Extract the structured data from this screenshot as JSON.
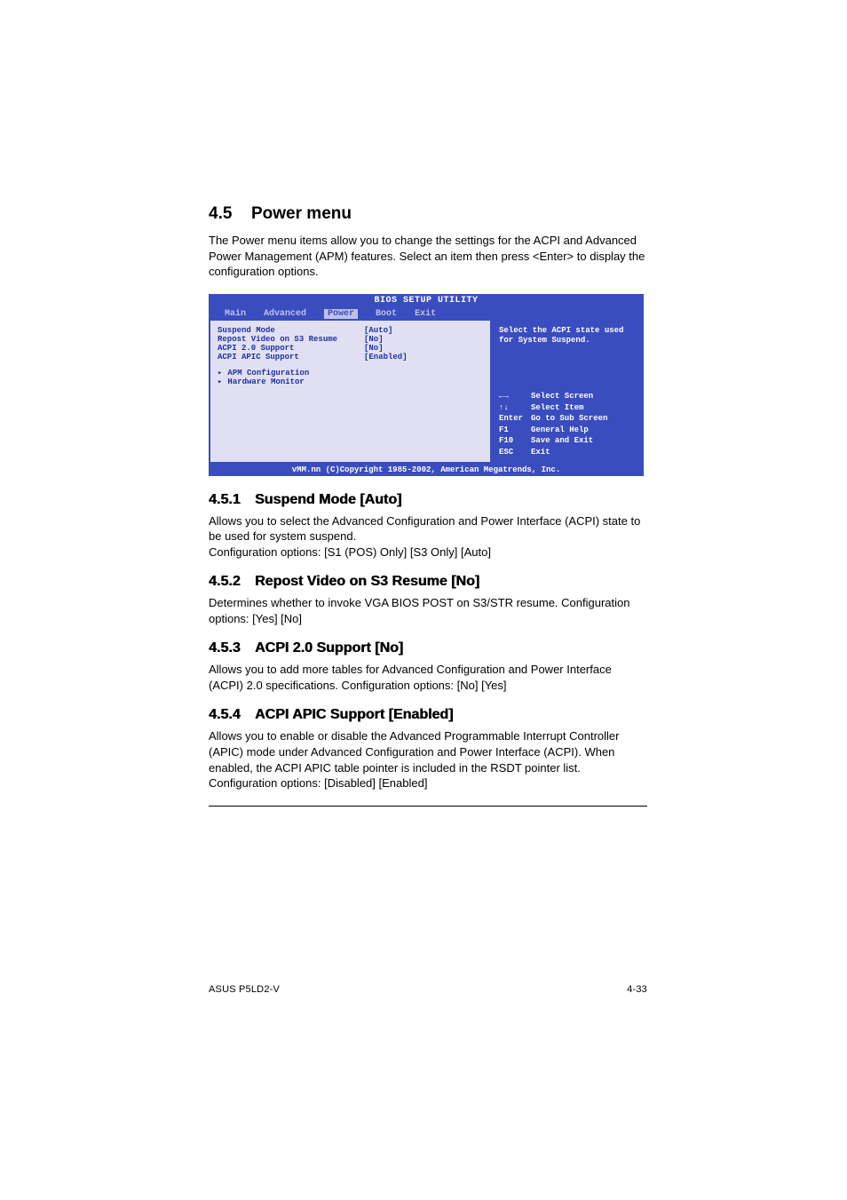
{
  "section": {
    "number": "4.5",
    "title": "Power menu",
    "intro": "The Power menu items allow you to change the settings for the ACPI and Advanced Power Management (APM) features. Select an item then press <Enter> to display the configuration options."
  },
  "bios": {
    "title": "BIOS SETUP UTILITY",
    "tabs": [
      "Main",
      "Advanced",
      "Power",
      "Boot",
      "Exit"
    ],
    "active_tab": "Power",
    "items": [
      {
        "label": "Suspend Mode",
        "value": "[Auto]"
      },
      {
        "label": "Repost Video on S3 Resume",
        "value": "[No]"
      },
      {
        "label": "ACPI 2.0 Support",
        "value": "[No]"
      },
      {
        "label": "ACPI APIC Support",
        "value": "[Enabled]"
      }
    ],
    "submenus": [
      "APM Configuration",
      "Hardware Monitor"
    ],
    "help_top": "Select the ACPI state used for System Suspend.",
    "help_keys": [
      {
        "key": "←→",
        "action": "Select Screen"
      },
      {
        "key": "↑↓",
        "action": "Select Item"
      },
      {
        "key": "Enter",
        "action": "Go to Sub Screen"
      },
      {
        "key": "F1",
        "action": "General Help"
      },
      {
        "key": "F10",
        "action": "Save and Exit"
      },
      {
        "key": "ESC",
        "action": "Exit"
      }
    ],
    "footer": "vMM.nn (C)Copyright 1985-2002, American Megatrends, Inc."
  },
  "subsections": [
    {
      "number": "4.5.1",
      "title": "Suspend Mode [Auto]",
      "body1": "Allows you to select the Advanced Configuration and Power Interface (ACPI) state to be used for system suspend.",
      "body2": "Configuration options: [S1 (POS) Only] [S3 Only] [Auto]"
    },
    {
      "number": "4.5.2",
      "title": "Repost Video on S3 Resume [No]",
      "body1": "Determines whether to invoke VGA BIOS POST on S3/STR resume. Configuration options: [Yes] [No]",
      "body2": ""
    },
    {
      "number": "4.5.3",
      "title": "ACPI 2.0 Support [No]",
      "body1": "Allows you to add more tables for Advanced Configuration and Power Interface (ACPI) 2.0 specifications. Configuration options: [No] [Yes]",
      "body2": ""
    },
    {
      "number": "4.5.4",
      "title": "ACPI APIC Support [Enabled]",
      "body1": "Allows you to enable or disable the Advanced  Programmable Interrupt Controller (APIC) mode under Advanced Configuration and Power Interface (ACPI). When enabled, the ACPI APIC table pointer is included in the RSDT pointer list. Configuration options: [Disabled] [Enabled]",
      "body2": ""
    }
  ],
  "footer": {
    "left": "ASUS P5LD2-V",
    "right": "4-33"
  },
  "colors": {
    "bios_bg": "#3a4dbf",
    "bios_panel": "#e0e0f2",
    "text": "#000000"
  }
}
